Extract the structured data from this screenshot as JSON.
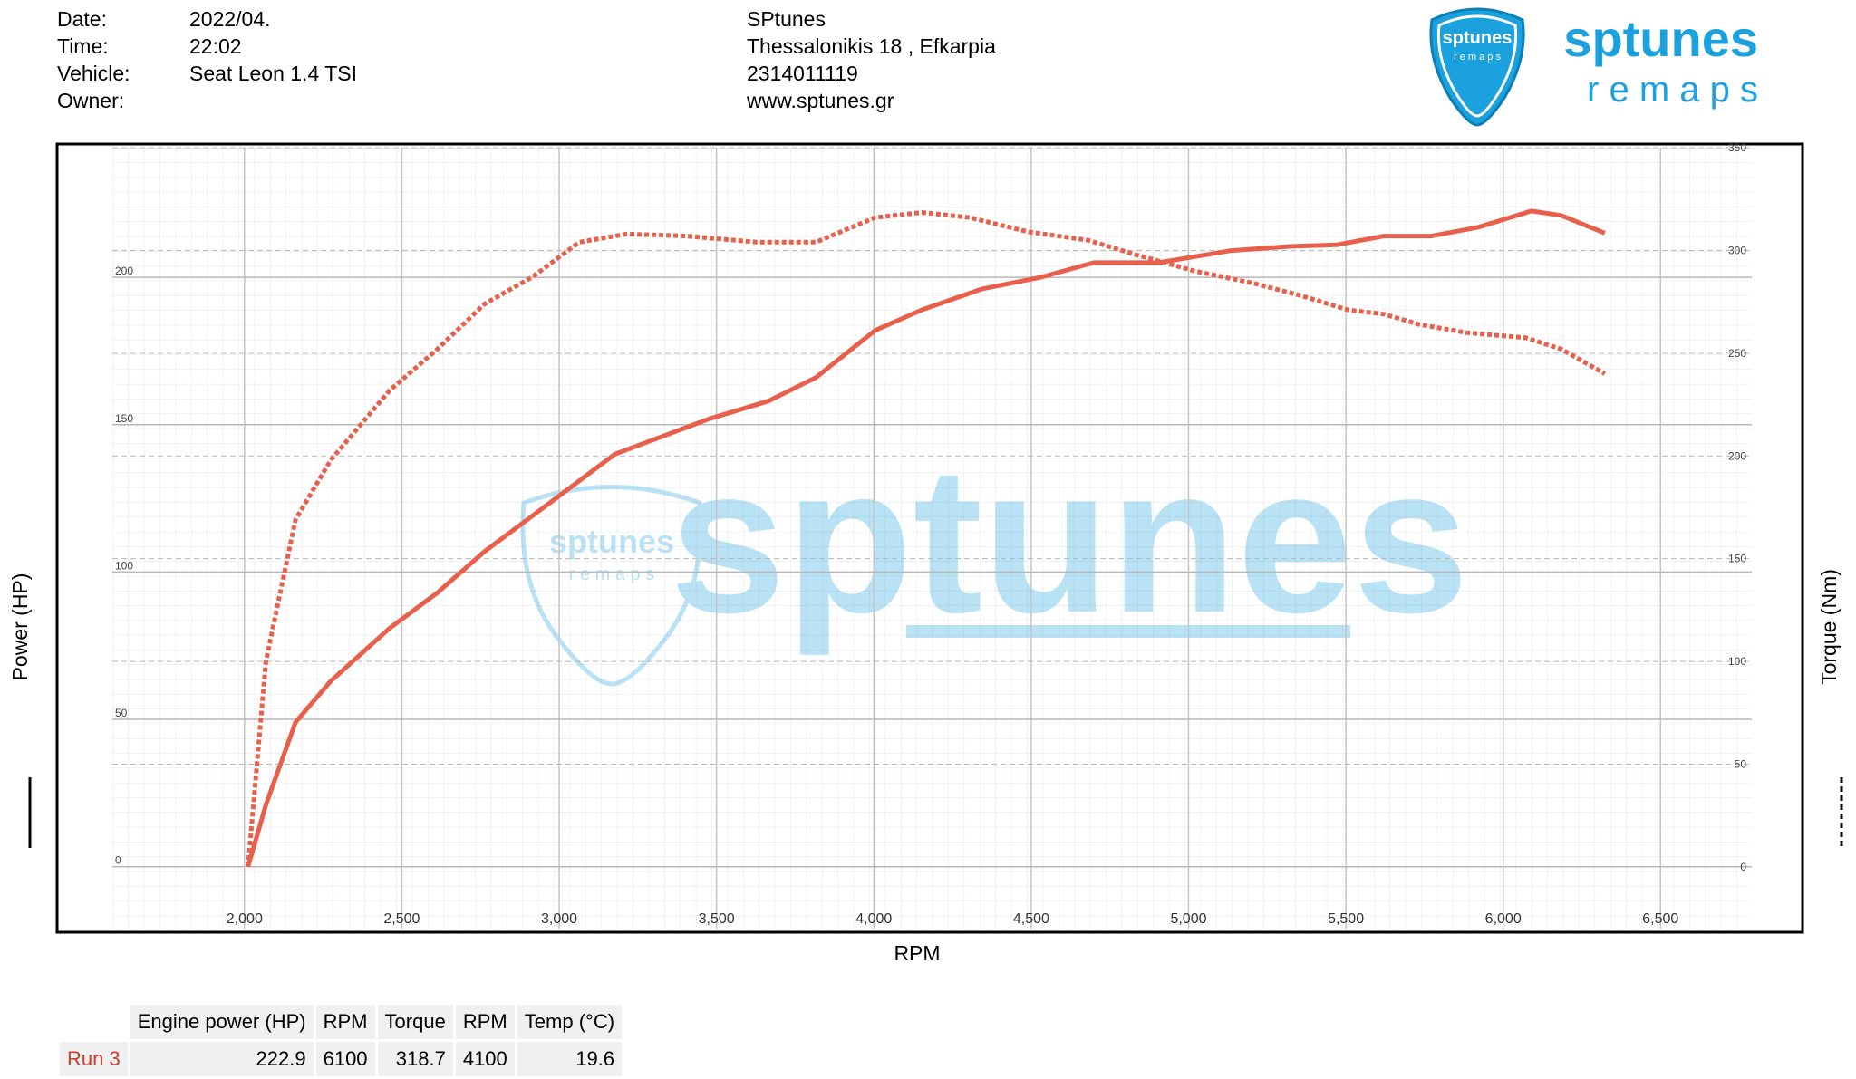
{
  "header": {
    "fields": [
      {
        "label": "Date:",
        "value": "2022/04."
      },
      {
        "label": "Time:",
        "value": "22:02"
      },
      {
        "label": "Vehicle:",
        "value": "Seat Leon 1.4 TSI"
      },
      {
        "label": "Owner:"
      }
    ],
    "shop": [
      "SPtunes",
      "Thessalonikis 18 , Efkarpia",
      "2314011119",
      "www.sptunes.gr"
    ],
    "logo": {
      "name": "sptunes",
      "tagline": "r e m a p s"
    }
  },
  "watermark": {
    "name": "sptunes",
    "tagline": "r e m a p s"
  },
  "chart_data": {
    "type": "line",
    "x_label": "RPM",
    "y_label": "Power (HP)",
    "y2_label": "Torque (Nm)",
    "xlim": [
      1580,
      6790
    ],
    "xticks": [
      {
        "value": 2000,
        "label": "2,000"
      },
      {
        "value": 2500,
        "label": "2,500"
      },
      {
        "value": 3000,
        "label": "3,000"
      },
      {
        "value": 3500,
        "label": "3,500"
      },
      {
        "value": 4000,
        "label": "4,000"
      },
      {
        "value": 4500,
        "label": "4,500"
      },
      {
        "value": 5000,
        "label": "5,000"
      },
      {
        "value": 5500,
        "label": "5,500"
      },
      {
        "value": 6000,
        "label": "6,000"
      },
      {
        "value": 6500,
        "label": "6,500"
      }
    ],
    "ylim": [
      -21,
      244
    ],
    "yticks": [
      0,
      50,
      100,
      150,
      200
    ],
    "y2lim": [
      -30,
      350
    ],
    "y2ticks": [
      0,
      50,
      100,
      150,
      200,
      250,
      300,
      350
    ],
    "grid": true,
    "series": [
      {
        "color": "#e8604c",
        "style": "solid",
        "x": [
          2011,
          2068,
          2162,
          2274,
          2462,
          2613,
          2763,
          2914,
          3064,
          3177,
          3327,
          3477,
          3665,
          3816,
          4004,
          4154,
          4342,
          4530,
          4699,
          4906,
          5132,
          5320,
          5470,
          5620,
          5771,
          5921,
          6090,
          6184,
          6323
        ],
        "values": [
          0,
          21,
          49,
          63,
          81,
          93,
          107,
          119,
          131,
          140,
          146,
          152,
          158,
          166,
          182,
          189,
          196,
          200,
          205,
          205,
          209,
          210.5,
          211,
          214,
          214,
          217,
          222.5,
          221,
          215
        ]
      },
      {
        "color": "#e8604c",
        "style": "dashed",
        "axis": "y2",
        "x": [
          2011,
          2068,
          2162,
          2274,
          2462,
          2613,
          2763,
          2914,
          3064,
          3214,
          3402,
          3628,
          3816,
          4004,
          4154,
          4304,
          4492,
          4680,
          4831,
          5019,
          5207,
          5357,
          5508,
          5620,
          5733,
          5883,
          6071,
          6184,
          6323
        ],
        "values": [
          0,
          100,
          169,
          198,
          232,
          252,
          274,
          287,
          304,
          308,
          307,
          304,
          304,
          316,
          318.5,
          316,
          309,
          305,
          298,
          290,
          284,
          278,
          271,
          269,
          264,
          260,
          257.5,
          252,
          240
        ]
      }
    ]
  },
  "table": {
    "columns": [
      "Engine power (HP)",
      "RPM",
      "Torque",
      "RPM",
      "Temp (°C)"
    ],
    "rows": [
      {
        "label": "Run 3",
        "cells": [
          "222.9",
          "6100",
          "318.7",
          "4100",
          "19.6"
        ]
      }
    ]
  }
}
